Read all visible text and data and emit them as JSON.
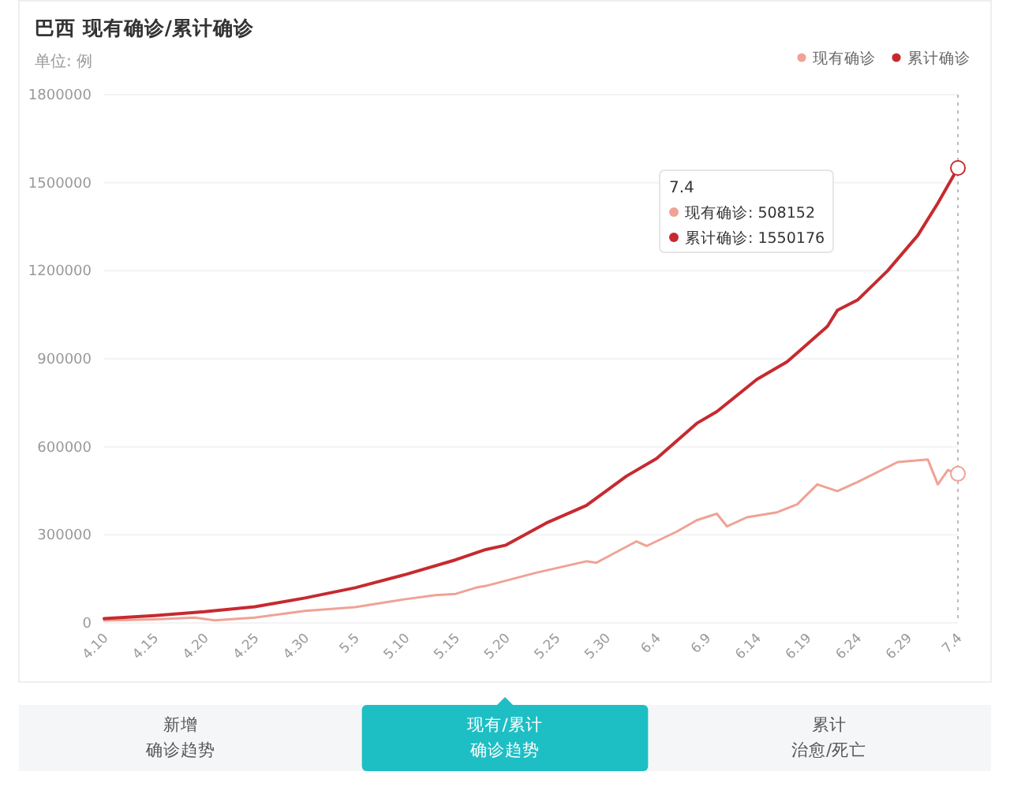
{
  "chart_data": {
    "type": "line",
    "title": "巴西 现有确诊/累计确诊",
    "subtitle": "单位: 例",
    "xlim": [
      "--04-10",
      "--07-04"
    ],
    "xticks": [
      {
        "value": "--04-10",
        "label": "4.10"
      },
      {
        "value": "--04-15",
        "label": "4.15"
      },
      {
        "value": "--04-20",
        "label": "4.20"
      },
      {
        "value": "--04-25",
        "label": "4.25"
      },
      {
        "value": "--04-30",
        "label": "4.30"
      },
      {
        "value": "--05-05",
        "label": "5.5"
      },
      {
        "value": "--05-10",
        "label": "5.10"
      },
      {
        "value": "--05-15",
        "label": "5.15"
      },
      {
        "value": "--05-20",
        "label": "5.20"
      },
      {
        "value": "--05-25",
        "label": "5.25"
      },
      {
        "value": "--05-30",
        "label": "5.30"
      },
      {
        "value": "--06-04",
        "label": "6.4"
      },
      {
        "value": "--06-09",
        "label": "6.9"
      },
      {
        "value": "--06-14",
        "label": "6.14"
      },
      {
        "value": "--06-19",
        "label": "6.19"
      },
      {
        "value": "--06-24",
        "label": "6.24"
      },
      {
        "value": "--06-29",
        "label": "6.29"
      },
      {
        "value": "--07-04",
        "label": "7.4"
      }
    ],
    "ylim": [
      0,
      1800000
    ],
    "yticks": [
      0,
      300000,
      600000,
      900000,
      1200000,
      1500000,
      1800000
    ],
    "grid": "y",
    "legend": "top right",
    "line_style": "solid",
    "ref_lines": [
      {
        "axis": "x",
        "value": "--07-04",
        "color": "#bbbbbb",
        "line_style": "dotted"
      }
    ],
    "series": [
      {
        "name": "现有确诊",
        "color": "#f0a295",
        "x": [
          "--04-10",
          "--04-15",
          "--04-19",
          "--04-21",
          "--04-25",
          "--04-30",
          "--05-05",
          "--05-10",
          "--05-13",
          "--05-15",
          "--05-17",
          "--05-18",
          "--05-23",
          "--05-28",
          "--05-29",
          "--06-02",
          "--06-03",
          "--06-06",
          "--06-08",
          "--06-10",
          "--06-11",
          "--06-13",
          "--06-16",
          "--06-18",
          "--06-20",
          "--06-22",
          "--06-24",
          "--06-28",
          "--07-01",
          "--07-02",
          "--07-03",
          "--07-04"
        ],
        "values": [
          8000,
          12000,
          18000,
          9000,
          18000,
          41000,
          54000,
          81000,
          95000,
          99000,
          120000,
          126000,
          171000,
          210000,
          205000,
          278000,
          262000,
          311000,
          350000,
          372000,
          329000,
          360000,
          377000,
          404000,
          472000,
          449000,
          480000,
          548000,
          557000,
          472000,
          521000,
          508152
        ]
      },
      {
        "name": "累计确诊",
        "color": "#c62a2f",
        "x": [
          "--04-10",
          "--04-15",
          "--04-20",
          "--04-25",
          "--04-30",
          "--05-05",
          "--05-10",
          "--05-15",
          "--05-18",
          "--05-20",
          "--05-24",
          "--05-28",
          "--06-01",
          "--06-04",
          "--06-08",
          "--06-10",
          "--06-14",
          "--06-17",
          "--06-21",
          "--06-22",
          "--06-24",
          "--06-27",
          "--06-30",
          "--07-02",
          "--07-04"
        ],
        "values": [
          15000,
          25000,
          38000,
          55000,
          85000,
          120000,
          165000,
          215000,
          250000,
          265000,
          340000,
          400000,
          500000,
          560000,
          680000,
          720000,
          830000,
          890000,
          1010000,
          1065000,
          1100000,
          1200000,
          1320000,
          1430000,
          1550176
        ]
      }
    ],
    "annotations": [
      "7.4",
      "现有确诊: 508152",
      "累计确诊: 1550176",
      "新增",
      "确诊趋势",
      "现有/累计",
      "确诊趋势",
      "累计",
      "治愈/死亡"
    ]
  }
}
